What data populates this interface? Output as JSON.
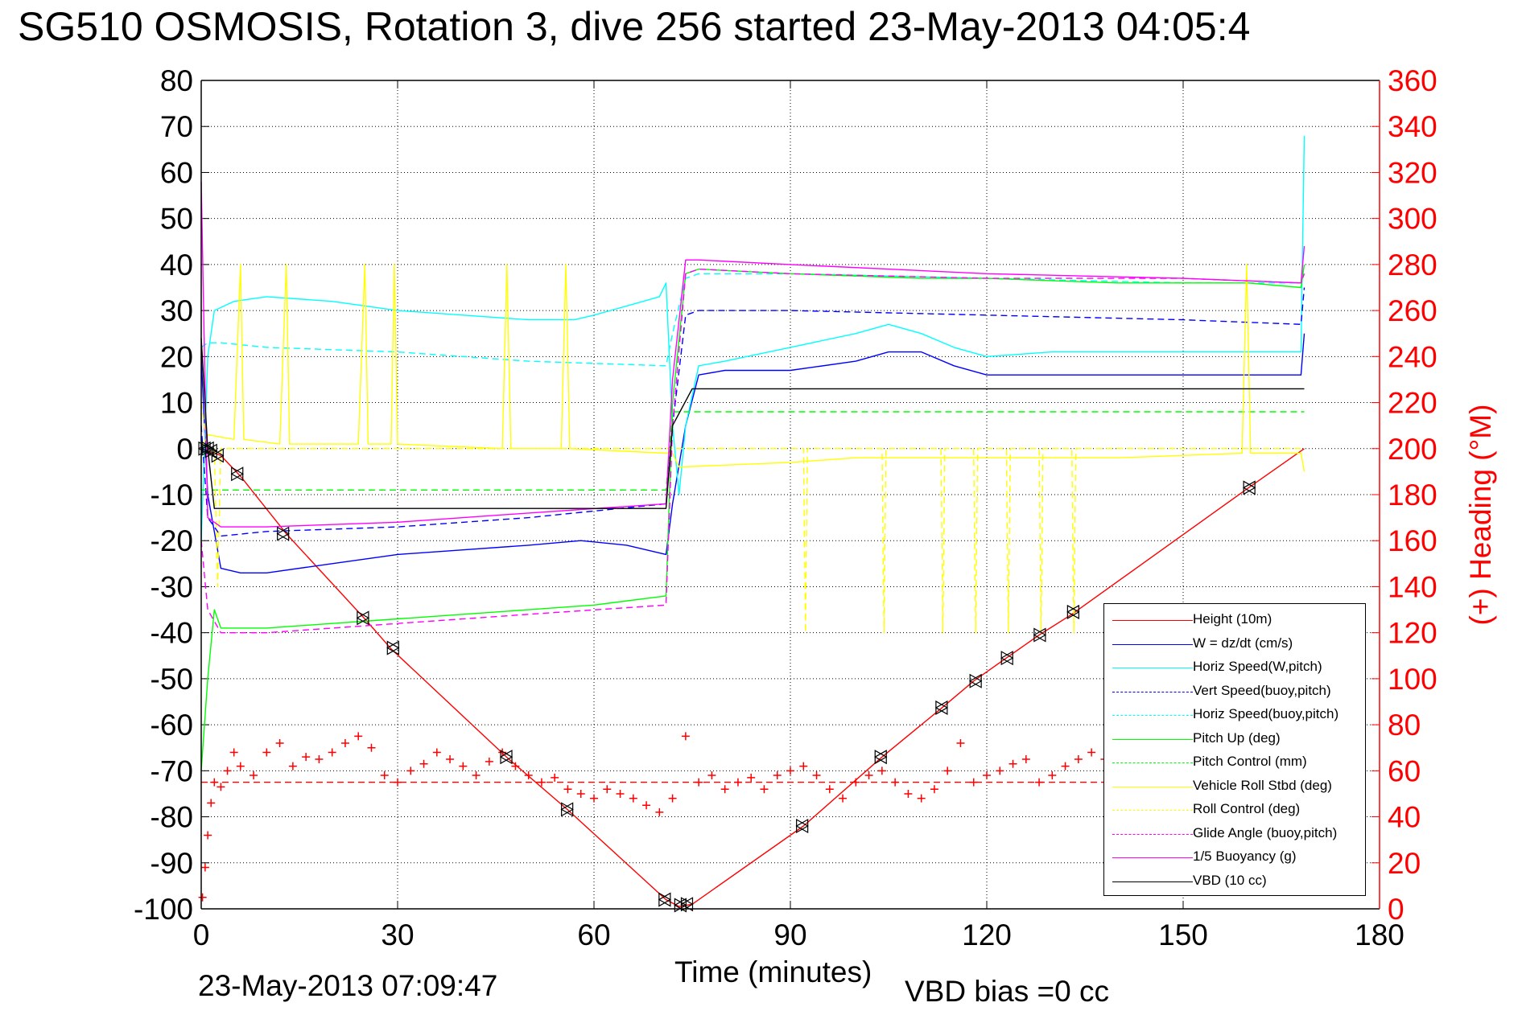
{
  "page": {
    "title": "SG510 OSMOSIS, Rotation 3, dive 256 started 23-May-2013 04:05:4",
    "timestamp": "23-May-2013 07:09:47",
    "vbd_bias": "VBD bias =0 cc"
  },
  "chart_data": {
    "type": "line",
    "title": "SG510 OSMOSIS, Rotation 3, dive 256 started 23-May-2013 04:05:4",
    "xlabel": "Time (minutes)",
    "ylabel": "",
    "ylabel_right": "(+) Heading (°M)",
    "xlim": [
      0,
      180
    ],
    "ylim": [
      -100,
      80
    ],
    "ylim_right": [
      0,
      360
    ],
    "xticks": [
      "0",
      "30",
      "60",
      "90",
      "120",
      "150",
      "180"
    ],
    "yticks": [
      "80",
      "70",
      "60",
      "50",
      "40",
      "30",
      "20",
      "10",
      "0",
      "-10",
      "-20",
      "-30",
      "-40",
      "-50",
      "-60",
      "-70",
      "-80",
      "-90",
      "-100"
    ],
    "yticks_right": [
      "360",
      "340",
      "320",
      "300",
      "280",
      "260",
      "240",
      "220",
      "200",
      "180",
      "160",
      "140",
      "120",
      "100",
      "80",
      "60",
      "40",
      "20",
      "0"
    ],
    "grid": true,
    "legend_position": "bottom-right",
    "colors": {
      "red": "#ff0000",
      "blue": "#0000ff",
      "cyan": "#00ffff",
      "green": "#00ff00",
      "yellow": "#ffff00",
      "magenta": "#ff00ff",
      "black": "#000000"
    },
    "series": [
      {
        "name": "Height (10m)",
        "color": "#ff0000",
        "style": "solid",
        "x": [
          0,
          1,
          3,
          6,
          13,
          25,
          29,
          47,
          56,
          71,
          73,
          75,
          92,
          104,
          113,
          118,
          123,
          128,
          133,
          160,
          168.5
        ],
        "y": [
          0,
          -0.5,
          -1.5,
          -6,
          -18.5,
          -37,
          -43.5,
          -67.5,
          -78.5,
          -98,
          -99.5,
          -99,
          -82,
          -67,
          -56.5,
          -50.5,
          -45.5,
          -40.5,
          -36,
          -8.5,
          0
        ]
      },
      {
        "name": "W = dz/dt (cm/s)",
        "color": "#0000ff",
        "style": "solid",
        "x": [
          0,
          1,
          3,
          6,
          10,
          20,
          30,
          40,
          50,
          58,
          65,
          71,
          72,
          74,
          76,
          80,
          90,
          100,
          105,
          110,
          115,
          120,
          130,
          140,
          150,
          160,
          168,
          168.5
        ],
        "y": [
          20,
          -10,
          -26,
          -27,
          -27,
          -25,
          -23,
          -22,
          -21,
          -20,
          -21,
          -23,
          -12,
          5,
          16,
          17,
          17,
          19,
          21,
          21,
          18,
          16,
          16,
          16,
          16,
          16,
          16,
          25
        ]
      },
      {
        "name": "Horiz Speed(W,pitch)",
        "color": "#00ffff",
        "style": "solid",
        "x": [
          0,
          1,
          2,
          5,
          10,
          20,
          30,
          40,
          50,
          57,
          60,
          65,
          70,
          71,
          72,
          73,
          74,
          76,
          80,
          90,
          100,
          105,
          110,
          115,
          120,
          130,
          140,
          150,
          160,
          168,
          168.5
        ],
        "y": [
          -20,
          20,
          30,
          32,
          33,
          32,
          30,
          29,
          28,
          28,
          29,
          31,
          33,
          36,
          5,
          -10,
          5,
          18,
          19,
          22,
          25,
          27,
          25,
          22,
          20,
          21,
          21,
          21,
          21,
          21,
          68
        ]
      },
      {
        "name": "Vert Speed(buoy,pitch)",
        "color": "#0000ff",
        "style": "dashed",
        "x": [
          0,
          1,
          3,
          10,
          30,
          50,
          71,
          72,
          74,
          76,
          90,
          120,
          150,
          168,
          168.5
        ],
        "y": [
          5,
          -15,
          -19,
          -18,
          -17,
          -15,
          -12,
          5,
          29,
          30,
          30,
          29,
          28,
          27,
          35
        ]
      },
      {
        "name": "Horiz Speed(buoy,pitch)",
        "color": "#00ffff",
        "style": "dashed",
        "x": [
          0,
          1,
          3,
          10,
          30,
          50,
          71,
          72,
          74,
          76,
          90,
          120,
          150,
          168,
          168.5
        ],
        "y": [
          22,
          23,
          23,
          22,
          21,
          19,
          18,
          25,
          37,
          38,
          38,
          37,
          36,
          36,
          38
        ]
      },
      {
        "name": "Pitch Up (deg)",
        "color": "#00ff00",
        "style": "solid",
        "x": [
          0,
          1,
          2,
          3,
          10,
          20,
          30,
          40,
          50,
          60,
          71,
          72,
          74,
          76,
          90,
          110,
          120,
          140,
          160,
          168,
          168.5
        ],
        "y": [
          -70,
          -50,
          -35,
          -39,
          -39,
          -38,
          -37,
          -36,
          -35,
          -34,
          -32,
          10,
          38,
          39,
          38,
          37,
          37,
          36,
          36,
          35,
          40
        ]
      },
      {
        "name": "Pitch Control (mm)",
        "color": "#00ff00",
        "style": "dashed",
        "x": [
          0,
          1,
          3,
          71,
          72,
          75,
          168.5
        ],
        "y": [
          -9,
          -9,
          -9,
          -9,
          8,
          8,
          8
        ]
      },
      {
        "name": "Vehicle Roll Stbd (deg)",
        "color": "#ffff00",
        "style": "solid",
        "x": [
          0,
          1,
          5,
          6,
          6.5,
          12,
          13,
          13.5,
          24,
          25,
          25.5,
          29,
          29.5,
          30,
          46,
          46.7,
          47.3,
          55,
          55.7,
          56.3,
          71,
          72,
          73,
          90,
          100,
          120,
          140,
          159,
          159.7,
          160.3,
          168,
          168.5
        ],
        "y": [
          0,
          3,
          2,
          40,
          2,
          1,
          40,
          1,
          1,
          40,
          1,
          1,
          40,
          1,
          0,
          40,
          0,
          0,
          40,
          0,
          -1,
          -1,
          -4,
          -3,
          -2,
          -2,
          -2,
          -1,
          40,
          -1,
          -1,
          -5
        ]
      },
      {
        "name": "Roll Control (deg)",
        "color": "#ffff00",
        "style": "dashed",
        "x": [
          0,
          1,
          2,
          2.5,
          3,
          71,
          72,
          92,
          92.3,
          92.6,
          104,
          104.3,
          104.6,
          113,
          113.3,
          113.6,
          118,
          118.3,
          118.6,
          123,
          123.3,
          123.6,
          128,
          128.3,
          128.6,
          133,
          133.3,
          133.6,
          168.5
        ],
        "y": [
          10,
          0,
          0,
          -30,
          0,
          0,
          0,
          0,
          -40,
          0,
          0,
          -40,
          0,
          0,
          -40,
          0,
          0,
          -40,
          0,
          0,
          -40,
          0,
          0,
          -40,
          0,
          0,
          -40,
          0,
          0
        ]
      },
      {
        "name": "Glide Angle (buoy,pitch)",
        "color": "#ff00ff",
        "style": "dashed",
        "x": [
          0,
          1,
          3,
          10,
          30,
          50,
          71,
          72,
          74,
          76,
          90,
          120,
          150,
          168,
          168.5
        ],
        "y": [
          -20,
          -35,
          -40,
          -40,
          -38,
          -36,
          -34,
          5,
          38,
          39,
          38,
          37,
          37,
          36,
          38
        ]
      },
      {
        "name": "1/5 Buoyancy (g)",
        "color": "#ff00ff",
        "style": "solid",
        "x": [
          0,
          0.5,
          1,
          3,
          10,
          30,
          50,
          71,
          72,
          74,
          76,
          90,
          120,
          150,
          168,
          168.5
        ],
        "y": [
          58,
          20,
          -15,
          -17,
          -17,
          -16,
          -14,
          -12,
          15,
          41,
          41,
          40,
          38,
          37,
          36,
          44
        ]
      },
      {
        "name": "VBD (10 cc)",
        "color": "#000000",
        "style": "solid",
        "x": [
          0,
          1,
          2,
          71,
          72,
          75,
          168.5
        ],
        "y": [
          24,
          0,
          -13,
          -13,
          5,
          13,
          13
        ]
      },
      {
        "name": "",
        "color": "#ff0000",
        "style": "dashed",
        "x": [
          0,
          168.5
        ],
        "y": [
          -72.5,
          -72.5
        ]
      },
      {
        "name": "",
        "color": "#ff0000",
        "style": "plus-markers",
        "axis": "right",
        "x": [
          0.2,
          0.6,
          1,
          1.5,
          2,
          3,
          4,
          5,
          6,
          8,
          10,
          12,
          14,
          16,
          18,
          20,
          22,
          24,
          26,
          28,
          30,
          32,
          34,
          36,
          38,
          40,
          42,
          44,
          46,
          48,
          50,
          52,
          54,
          56,
          58,
          60,
          62,
          64,
          66,
          68,
          70,
          72,
          74,
          76,
          78,
          80,
          82,
          84,
          86,
          88,
          90,
          92,
          94,
          96,
          98,
          100,
          102,
          104,
          106,
          108,
          110,
          112,
          114,
          116,
          118,
          120,
          122,
          124,
          126,
          128,
          130,
          132,
          134,
          136,
          138,
          140
        ],
        "y": [
          5,
          18,
          32,
          46,
          55,
          53,
          60,
          68,
          62,
          58,
          68,
          72,
          62,
          66,
          65,
          68,
          72,
          75,
          70,
          58,
          55,
          60,
          63,
          68,
          65,
          62,
          58,
          64,
          68,
          62,
          58,
          55,
          57,
          52,
          50,
          48,
          52,
          50,
          48,
          45,
          42,
          48,
          75,
          55,
          58,
          52,
          55,
          57,
          52,
          58,
          60,
          62,
          58,
          52,
          48,
          55,
          58,
          60,
          55,
          50,
          48,
          52,
          60,
          72,
          55,
          58,
          60,
          63,
          65,
          55,
          58,
          62,
          65,
          68,
          65,
          62
        ]
      },
      {
        "name": "",
        "color": "#000000",
        "style": "triangle-markers",
        "x": [
          0.5,
          1,
          1.5,
          2.5,
          5.5,
          12.5,
          24.7,
          29.3,
          46.6,
          55.9,
          70.8,
          73.2,
          74.2,
          91.8,
          103.8,
          113.1,
          118.3,
          123.1,
          128.1,
          133.2,
          160.1
        ],
        "y": [
          0,
          0,
          -0.5,
          -1.5,
          -5.5,
          -18.5,
          -36.8,
          -43.3,
          -67,
          -78.4,
          -98,
          -99.2,
          -99,
          -82,
          -67,
          -56.3,
          -50.5,
          -45.5,
          -40.5,
          -35.5,
          -8.5
        ]
      }
    ]
  }
}
